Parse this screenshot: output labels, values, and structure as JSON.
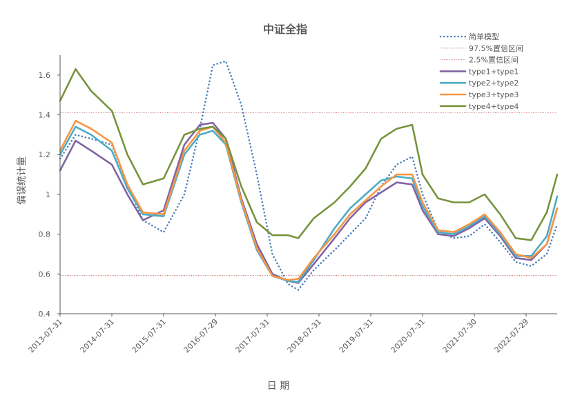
{
  "chart_data": {
    "type": "line",
    "title": "中证全指",
    "xlabel": "日 期",
    "ylabel": "偏误统计量",
    "ylim": [
      0.4,
      1.7
    ],
    "x_range": [
      0,
      9.6
    ],
    "yticks": [
      0.4,
      0.6,
      0.8,
      1,
      1.2,
      1.4,
      1.6
    ],
    "ytick_labels": [
      "0.4",
      "0.6",
      "0.8",
      "1",
      "1.2",
      "1.4",
      "1.6"
    ],
    "xticks": [
      0,
      1,
      2,
      3,
      4,
      5,
      6,
      7,
      8,
      9
    ],
    "xtick_labels": [
      "2013-07-31",
      "2014-07-31",
      "2015-07-31",
      "2016-07-29",
      "2017-07-31",
      "2018-07-31",
      "2019-07-31",
      "2020-07-31",
      "2021-07-30",
      "2022-07-29"
    ],
    "grid": false,
    "legend_position": "top-right",
    "reference_lines": [
      {
        "name": "97.5%置信区间",
        "value": 1.41,
        "color": "#c0504d"
      },
      {
        "name": "2.5%置信区间",
        "value": 0.593,
        "color": "#c0504d"
      }
    ],
    "series": [
      {
        "name": "简单模型",
        "color": "#4f81bd",
        "style": "dotted",
        "x": [
          0,
          0.3,
          0.6,
          1.0,
          1.3,
          1.6,
          2.0,
          2.4,
          2.7,
          2.95,
          3.2,
          3.5,
          3.8,
          4.1,
          4.4,
          4.6,
          4.9,
          5.3,
          5.6,
          5.9,
          6.2,
          6.5,
          6.8,
          7.0,
          7.3,
          7.6,
          7.9,
          8.2,
          8.5,
          8.8,
          9.1,
          9.4,
          9.6
        ],
        "y": [
          1.18,
          1.3,
          1.28,
          1.25,
          1.05,
          0.87,
          0.81,
          1.0,
          1.33,
          1.65,
          1.67,
          1.45,
          1.1,
          0.7,
          0.55,
          0.52,
          0.62,
          0.72,
          0.8,
          0.88,
          1.04,
          1.15,
          1.19,
          1.0,
          0.82,
          0.78,
          0.79,
          0.85,
          0.76,
          0.66,
          0.64,
          0.7,
          0.85
        ]
      },
      {
        "name": "type1+type1",
        "color": "#8064a2",
        "style": "solid",
        "x": [
          0,
          0.3,
          0.6,
          1.0,
          1.3,
          1.6,
          2.0,
          2.4,
          2.7,
          2.95,
          3.2,
          3.5,
          3.8,
          4.1,
          4.4,
          4.6,
          4.9,
          5.3,
          5.6,
          5.9,
          6.2,
          6.5,
          6.8,
          7.0,
          7.3,
          7.6,
          7.9,
          8.2,
          8.5,
          8.8,
          9.1,
          9.4,
          9.6
        ],
        "y": [
          1.12,
          1.27,
          1.22,
          1.15,
          1.0,
          0.87,
          0.92,
          1.25,
          1.35,
          1.36,
          1.28,
          0.98,
          0.75,
          0.6,
          0.565,
          0.555,
          0.65,
          0.78,
          0.88,
          0.96,
          1.01,
          1.06,
          1.05,
          0.92,
          0.8,
          0.79,
          0.83,
          0.88,
          0.79,
          0.68,
          0.67,
          0.75,
          0.93
        ]
      },
      {
        "name": "type2+type2",
        "color": "#4bacc6",
        "style": "solid",
        "x": [
          0,
          0.3,
          0.6,
          1.0,
          1.3,
          1.6,
          2.0,
          2.4,
          2.7,
          2.95,
          3.2,
          3.5,
          3.8,
          4.1,
          4.4,
          4.6,
          4.9,
          5.3,
          5.6,
          5.9,
          6.2,
          6.5,
          6.8,
          7.0,
          7.3,
          7.6,
          7.9,
          8.2,
          8.5,
          8.8,
          9.1,
          9.4,
          9.6
        ],
        "y": [
          1.2,
          1.34,
          1.3,
          1.22,
          1.03,
          0.9,
          0.89,
          1.2,
          1.3,
          1.32,
          1.25,
          0.96,
          0.72,
          0.59,
          0.565,
          0.56,
          0.67,
          0.83,
          0.93,
          1.0,
          1.07,
          1.09,
          1.08,
          0.94,
          0.81,
          0.8,
          0.84,
          0.89,
          0.8,
          0.69,
          0.69,
          0.79,
          0.99
        ]
      },
      {
        "name": "type3+type3",
        "color": "#f79646",
        "style": "solid",
        "x": [
          0,
          0.3,
          0.6,
          1.0,
          1.3,
          1.6,
          2.0,
          2.4,
          2.7,
          2.95,
          3.2,
          3.5,
          3.8,
          4.1,
          4.4,
          4.6,
          4.9,
          5.3,
          5.6,
          5.9,
          6.2,
          6.5,
          6.8,
          7.0,
          7.3,
          7.6,
          7.9,
          8.2,
          8.5,
          8.8,
          9.1,
          9.4,
          9.6
        ],
        "y": [
          1.22,
          1.37,
          1.33,
          1.26,
          1.05,
          0.91,
          0.9,
          1.22,
          1.32,
          1.34,
          1.26,
          0.97,
          0.73,
          0.59,
          0.57,
          0.575,
          0.68,
          0.8,
          0.9,
          0.97,
          1.04,
          1.1,
          1.1,
          0.96,
          0.82,
          0.81,
          0.85,
          0.9,
          0.81,
          0.7,
          0.68,
          0.75,
          0.93
        ]
      },
      {
        "name": "type4+type4",
        "color": "#77933c",
        "style": "solid",
        "x": [
          0,
          0.3,
          0.6,
          1.0,
          1.3,
          1.6,
          2.0,
          2.4,
          2.7,
          2.95,
          3.2,
          3.5,
          3.8,
          4.1,
          4.4,
          4.6,
          4.9,
          5.3,
          5.6,
          5.9,
          6.2,
          6.5,
          6.8,
          7.0,
          7.3,
          7.6,
          7.9,
          8.2,
          8.5,
          8.8,
          9.1,
          9.4,
          9.6
        ],
        "y": [
          1.47,
          1.63,
          1.52,
          1.42,
          1.2,
          1.05,
          1.08,
          1.3,
          1.33,
          1.34,
          1.28,
          1.04,
          0.86,
          0.795,
          0.795,
          0.78,
          0.88,
          0.96,
          1.04,
          1.13,
          1.28,
          1.33,
          1.35,
          1.1,
          0.98,
          0.96,
          0.96,
          1.0,
          0.9,
          0.78,
          0.77,
          0.91,
          1.1
        ]
      }
    ]
  }
}
